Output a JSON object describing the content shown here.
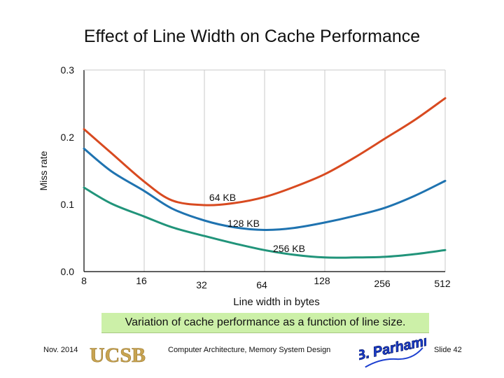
{
  "chart_data": {
    "type": "line",
    "title": "Effect of Line Width on Cache Performance",
    "xlabel": "Line width in bytes",
    "ylabel": "Miss rate",
    "x_categories": [
      "8",
      "16",
      "32",
      "64",
      "128",
      "256",
      "512"
    ],
    "y_ticks": [
      "0.0",
      "0.1",
      "0.2",
      "0.3"
    ],
    "ylim": [
      0.0,
      0.3
    ],
    "grid": "vertical",
    "series": [
      {
        "name": "64 KB",
        "color": "#d84a20",
        "x": [
          8,
          11,
          16,
          22,
          32,
          45,
          64,
          90,
          128,
          181,
          256,
          362,
          512
        ],
        "y": [
          0.212,
          0.176,
          0.134,
          0.106,
          0.099,
          0.102,
          0.111,
          0.126,
          0.145,
          0.17,
          0.198,
          0.226,
          0.258
        ]
      },
      {
        "name": "128 KB",
        "color": "#1f73b0",
        "x": [
          8,
          11,
          16,
          22,
          32,
          45,
          64,
          90,
          128,
          181,
          256,
          362,
          512
        ],
        "y": [
          0.183,
          0.149,
          0.12,
          0.094,
          0.076,
          0.066,
          0.062,
          0.065,
          0.073,
          0.083,
          0.095,
          0.113,
          0.135
        ]
      },
      {
        "name": "256 KB",
        "color": "#21947a",
        "x": [
          8,
          11,
          16,
          22,
          32,
          45,
          64,
          90,
          128,
          181,
          256,
          362,
          512
        ],
        "y": [
          0.125,
          0.101,
          0.082,
          0.066,
          0.053,
          0.042,
          0.032,
          0.025,
          0.021,
          0.021,
          0.022,
          0.026,
          0.032
        ]
      }
    ],
    "annotations": [
      "64 KB",
      "128 KB",
      "256 KB"
    ]
  },
  "caption": "Variation of cache performance as a function of line size.",
  "footer": {
    "date": "Nov. 2014",
    "course": "Computer Architecture, Memory System Design",
    "slide": "Slide 42",
    "logo_text": "UCSB",
    "signature": "B. Parhami"
  },
  "colors": {
    "caption_bg": "#ccf0a8",
    "logo_gold": "#c8a452",
    "signature_blue": "#1c3fd0"
  }
}
